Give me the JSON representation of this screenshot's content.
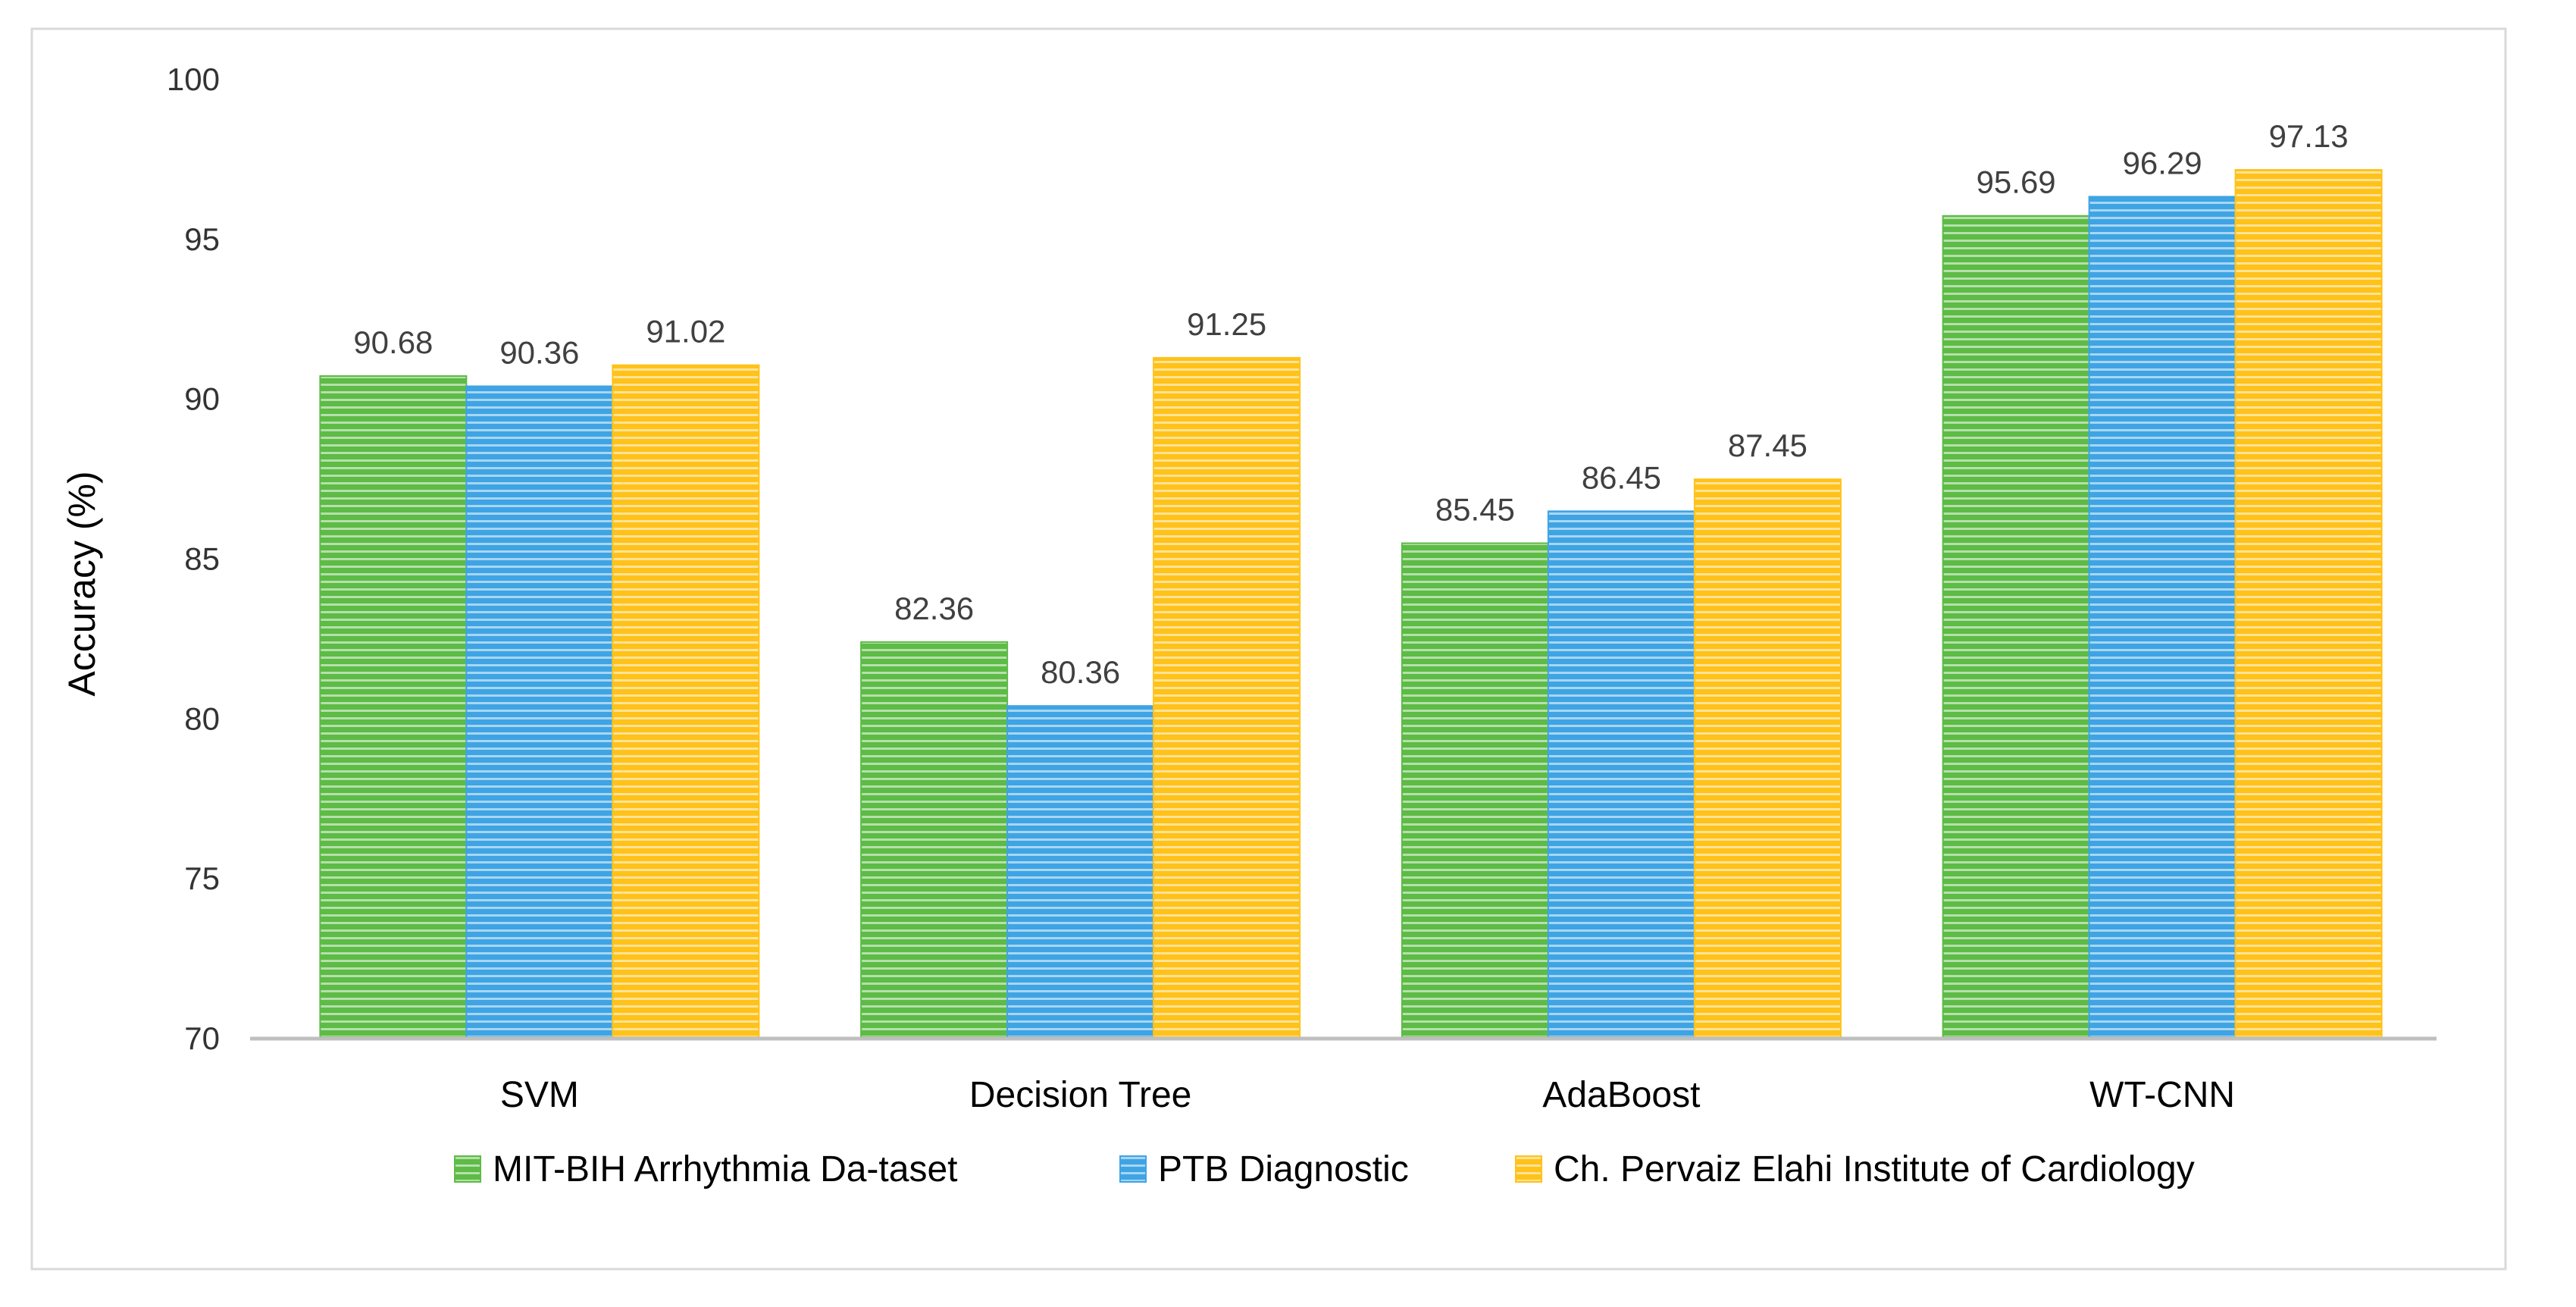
{
  "chart_data": {
    "type": "bar",
    "title": "",
    "xlabel": "",
    "ylabel": "Accuracy (%)",
    "ylim": [
      70,
      100
    ],
    "yticks": [
      70,
      75,
      80,
      85,
      90,
      95,
      100
    ],
    "grid": false,
    "legend_position": "bottom",
    "categories": [
      "SVM",
      "Decision Tree",
      "AdaBoost",
      "WT-CNN"
    ],
    "series": [
      {
        "name": "MIT-BIH Arrhythmia Da-taset",
        "color": "#5DBB46",
        "values": [
          90.68,
          82.36,
          85.45,
          95.69
        ],
        "labels": [
          "90.68",
          "82.36",
          "85.45",
          "95.69"
        ]
      },
      {
        "name": "PTB Diagnostic",
        "color": "#3FA4E4",
        "values": [
          90.36,
          80.36,
          86.45,
          96.29
        ],
        "labels": [
          "90.36",
          "80.36",
          "86.45",
          "96.29"
        ]
      },
      {
        "name": "Ch. Pervaiz Elahi Institute of Cardiology",
        "color": "#FFC21A",
        "values": [
          91.02,
          91.25,
          87.45,
          97.13
        ],
        "labels": [
          "91.02",
          "91.25",
          "87.45",
          "97.13"
        ]
      }
    ]
  }
}
